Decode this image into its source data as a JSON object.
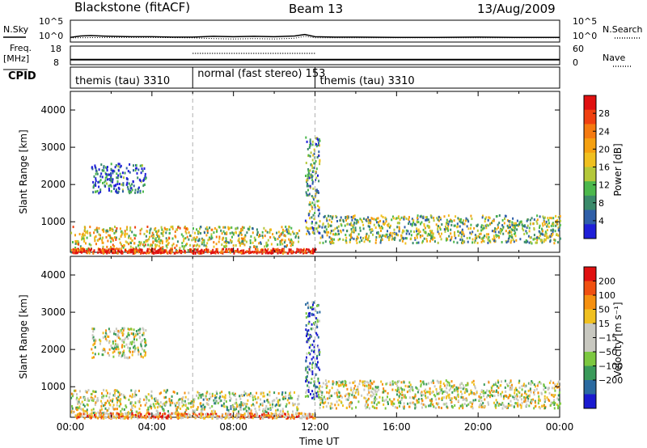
{
  "header": {
    "radar": "Blackstone (fitACF)",
    "beam": "Beam 13",
    "date": "13/Aug/2009"
  },
  "top_panels": {
    "nsky_label": "N.Sky",
    "nsky_ticks": [
      "10^5",
      "10^0"
    ],
    "nsearch_label": "N.Search",
    "nsearch_ticks": [
      "10^5",
      "10^0"
    ],
    "freq_label": "Freq.",
    "freq_unit": "[MHz]",
    "freq_ticks": [
      "18",
      "8"
    ],
    "nave_label": "Nave",
    "nave_ticks": [
      "60",
      "0"
    ],
    "cpid_label": "CPID"
  },
  "chart_data": [
    {
      "type": "line",
      "panel": "noise",
      "series": [
        {
          "name": "N.Sky",
          "style": "solid",
          "x_hours": [
            0,
            0.5,
            1,
            1.5,
            2,
            3,
            4,
            5,
            6,
            7,
            8,
            9,
            10,
            11,
            11.5,
            12,
            13,
            14,
            16,
            18,
            20,
            22,
            24
          ],
          "y_log10": [
            0.8,
            1.2,
            1.3,
            1.2,
            1.1,
            1.0,
            1.0,
            0.9,
            0.9,
            1.1,
            1.0,
            1.1,
            1.0,
            1.2,
            1.6,
            1.0,
            0.9,
            0.9,
            0.8,
            0.8,
            0.9,
            0.8,
            0.8
          ]
        },
        {
          "name": "N.Search",
          "style": "dotted",
          "x_hours": [
            0,
            2,
            4,
            6,
            7,
            8,
            9,
            10,
            11,
            11.5,
            12,
            14,
            16,
            18,
            20,
            22,
            24
          ],
          "y_log10": [
            0.7,
            0.8,
            0.8,
            0.7,
            0.5,
            0.4,
            0.5,
            0.4,
            0.6,
            1.1,
            0.7,
            0.7,
            0.7,
            0.7,
            0.7,
            0.7,
            0.7
          ]
        }
      ],
      "ylim_log10": [
        0,
        5
      ]
    },
    {
      "type": "line",
      "panel": "freq-nave",
      "series": [
        {
          "name": "Freq.",
          "style": "solid",
          "unit": "MHz",
          "x_hours": [
            0,
            6,
            12,
            24
          ],
          "y": [
            10.2,
            10.2,
            10.2,
            10.2
          ]
        },
        {
          "name": "Nave",
          "style": "dotted",
          "x_hours": [
            0,
            6,
            6,
            12,
            12,
            24
          ],
          "y": [
            null,
            null,
            38,
            38,
            null,
            null
          ]
        }
      ],
      "ylim_freq": [
        8,
        18
      ],
      "ylim_nave": [
        0,
        60
      ]
    },
    {
      "type": "table",
      "panel": "cpid",
      "segments": [
        {
          "start_hour": 0,
          "end_hour": 6,
          "label": "themis (tau) 3310"
        },
        {
          "start_hour": 6,
          "end_hour": 12,
          "label": "normal (fast stereo) 153"
        },
        {
          "start_hour": 12,
          "end_hour": 24,
          "label": "themis (tau) 3310"
        }
      ]
    },
    {
      "type": "heatmap",
      "panel": "power",
      "xlabel": "",
      "ylabel": "Slant Range [km]",
      "xlim_hours": [
        0,
        24
      ],
      "ylim_km": [
        180,
        4500
      ],
      "y_ticks": [
        1000,
        2000,
        3000,
        4000
      ],
      "colorbar_label": "Power [dB]",
      "colorbar_ticks": [
        4,
        8,
        12,
        16,
        20,
        24,
        28
      ],
      "colorbar_colors": [
        "#1f1fd8",
        "#2f5fa8",
        "#3a8a6a",
        "#4cb84c",
        "#b4c83a",
        "#f0c020",
        "#f5a010",
        "#f57a10",
        "#f04010",
        "#e01010"
      ],
      "regions": [
        {
          "t0": 0.0,
          "t1": 6.1,
          "r0": 200,
          "r1": 900,
          "level": 0.55
        },
        {
          "t0": 6.0,
          "t1": 11.2,
          "r0": 350,
          "r1": 900,
          "level": 0.45
        },
        {
          "t0": 1.0,
          "t1": 3.7,
          "r0": 1800,
          "r1": 2600,
          "level": 0.15
        },
        {
          "t0": 11.5,
          "t1": 12.2,
          "r0": 700,
          "r1": 3300,
          "level": 0.3
        },
        {
          "t0": 12.2,
          "t1": 24.0,
          "r0": 450,
          "r1": 1200,
          "level": 0.4
        },
        {
          "t0": 0.0,
          "t1": 12.0,
          "r0": 180,
          "r1": 300,
          "level": 0.95
        }
      ]
    },
    {
      "type": "heatmap",
      "panel": "velocity",
      "xlabel": "Time UT",
      "ylabel": "Slant Range [km]",
      "xlim_hours": [
        0,
        24
      ],
      "ylim_km": [
        180,
        4500
      ],
      "y_ticks": [
        1000,
        2000,
        3000,
        4000
      ],
      "x_ticks": [
        "00:00",
        "04:00",
        "08:00",
        "12:00",
        "16:00",
        "20:00",
        "00:00"
      ],
      "colorbar_label": "Velocity [m s⁻¹]",
      "colorbar_ticks": [
        200,
        100,
        50,
        15,
        -15,
        -50,
        -100,
        -200
      ],
      "colorbar_colors": [
        "#1a1ad0",
        "#2a6aa0",
        "#3a9a5a",
        "#7cc840",
        "#c8c8c0",
        "#c8c8c0",
        "#f0c020",
        "#f59010",
        "#f05010",
        "#e01010"
      ],
      "regions": [
        {
          "t0": 0.0,
          "t1": 6.1,
          "r0": 300,
          "r1": 950,
          "level": 0.5
        },
        {
          "t0": 6.0,
          "t1": 11.2,
          "r0": 350,
          "r1": 900,
          "level": 0.45
        },
        {
          "t0": 1.0,
          "t1": 3.7,
          "r0": 1800,
          "r1": 2600,
          "level": 0.5
        },
        {
          "t0": 11.5,
          "t1": 12.2,
          "r0": 700,
          "r1": 3300,
          "level": 0.2
        },
        {
          "t0": 12.2,
          "t1": 24.0,
          "r0": 450,
          "r1": 1200,
          "level": 0.5
        },
        {
          "t0": 0.0,
          "t1": 12.0,
          "r0": 180,
          "r1": 320,
          "level": 0.7
        }
      ]
    }
  ]
}
